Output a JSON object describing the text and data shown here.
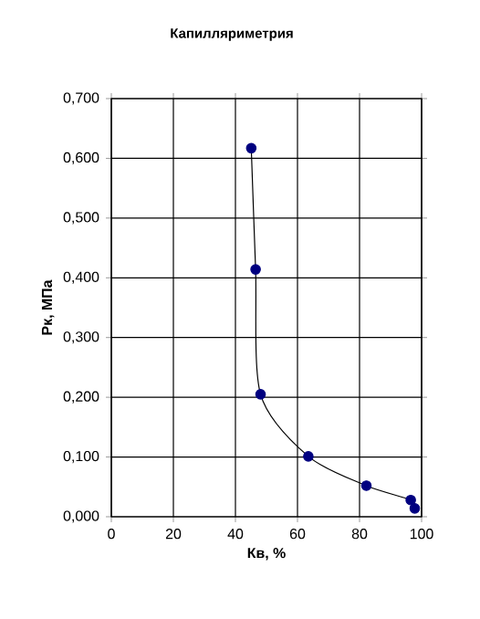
{
  "chart_data": {
    "type": "line",
    "title": "Капилляриметрия",
    "xlabel": "Кв, %",
    "ylabel": "Рк, МПа",
    "x": [
      45.1,
      46.5,
      48.1,
      63.5,
      82.2,
      96.5,
      97.8
    ],
    "series": [
      {
        "color": "#000080",
        "values": [
          0.617,
          0.414,
          0.205,
          0.101,
          0.052,
          0.028,
          0.014
        ]
      }
    ],
    "xlim": [
      0,
      100
    ],
    "xticks": [
      0,
      20,
      40,
      60,
      80,
      100
    ],
    "ylim": [
      0,
      0.7
    ],
    "yticks": [
      {
        "value": 0,
        "label": "0,000"
      },
      {
        "value": 0.1,
        "label": "0,100"
      },
      {
        "value": 0.2,
        "label": "0,200"
      },
      {
        "value": 0.3,
        "label": "0,300"
      },
      {
        "value": 0.4,
        "label": "0,400"
      },
      {
        "value": 0.5,
        "label": "0,500"
      },
      {
        "value": 0.6,
        "label": "0,600"
      },
      {
        "value": 0.7,
        "label": "0,700"
      }
    ],
    "grid": true,
    "marker": "circle",
    "line_style": "solid"
  }
}
